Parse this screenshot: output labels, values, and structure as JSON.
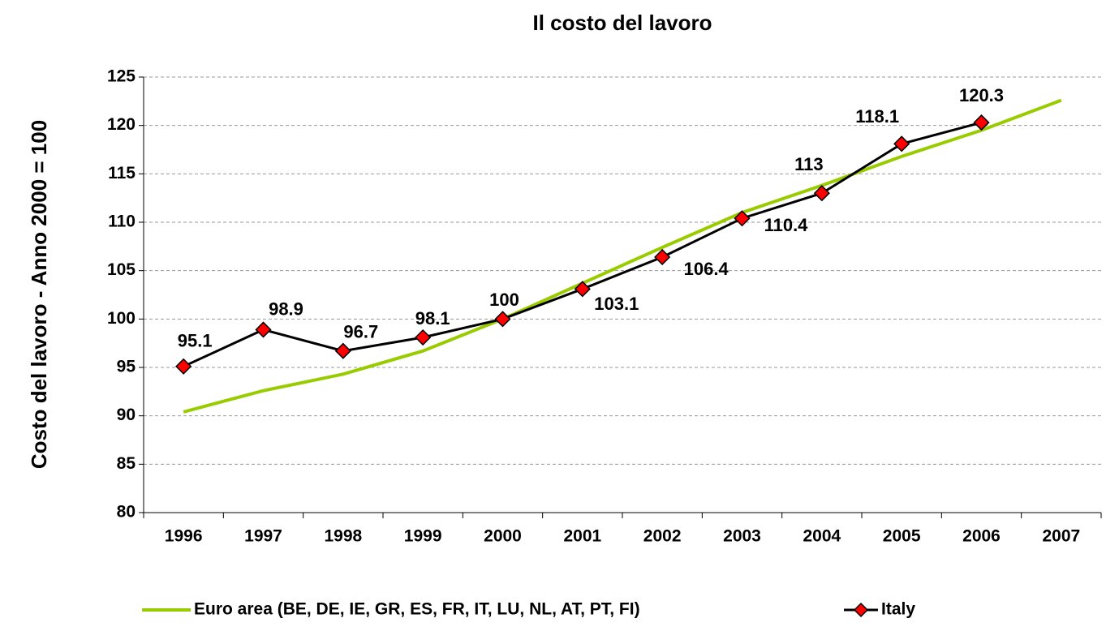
{
  "chart_data": {
    "type": "line",
    "title": "Il costo del lavoro",
    "y_label": "Costo del lavoro - Anno 2000 = 100",
    "categories": [
      "1996",
      "1997",
      "1998",
      "1999",
      "2000",
      "2001",
      "2002",
      "2003",
      "2004",
      "2005",
      "2006",
      "2007"
    ],
    "series": [
      {
        "name": "Euro area (BE, DE, IE, GR, ES, FR, IT, LU, NL, AT, PT, FI)",
        "color": "#99cc00",
        "marker": false,
        "values": [
          90.4,
          92.6,
          94.3,
          96.7,
          100,
          103.7,
          107.4,
          111,
          113.8,
          116.8,
          119.5,
          122.6
        ]
      },
      {
        "name": "Italy",
        "color": "#000000",
        "marker": true,
        "marker_color": "#ff0000",
        "data_labels": true,
        "values": [
          95.1,
          98.9,
          96.7,
          98.1,
          100,
          103.1,
          106.4,
          110.4,
          113,
          118.1,
          120.3,
          null
        ]
      }
    ],
    "ylim": [
      80,
      125
    ],
    "yticks": [
      80,
      85,
      90,
      95,
      100,
      105,
      110,
      115,
      120,
      125
    ],
    "grid": true,
    "legend": "bottom"
  }
}
